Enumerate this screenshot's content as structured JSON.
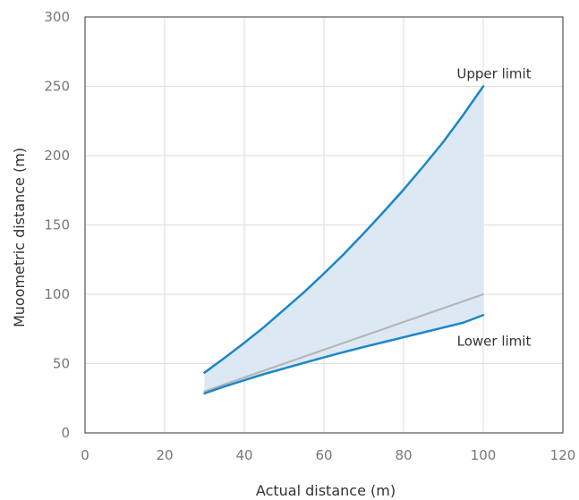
{
  "chart_data": {
    "type": "area",
    "title": "",
    "xlabel": "Actual distance (m)",
    "ylabel": "Muoometric distance (m)",
    "xlim": [
      0,
      120
    ],
    "ylim": [
      0,
      300
    ],
    "xticks": [
      0,
      20,
      40,
      60,
      80,
      100,
      120
    ],
    "yticks": [
      0,
      50,
      100,
      150,
      200,
      250,
      300
    ],
    "grid": true,
    "x": [
      30,
      35,
      40,
      45,
      50,
      55,
      60,
      65,
      70,
      75,
      80,
      85,
      90,
      95,
      100
    ],
    "series": [
      {
        "name": "Upper limit",
        "role": "upper",
        "color": "#1a87c9",
        "values": [
          43.5,
          54,
          65,
          76.5,
          89,
          101.5,
          115,
          129,
          144,
          159.5,
          175.5,
          192.5,
          210,
          229.5,
          250
        ]
      },
      {
        "name": "",
        "role": "actual",
        "color": "#b5b5b5",
        "values": [
          30,
          35,
          40,
          45,
          50,
          55,
          60,
          65,
          70,
          75,
          80,
          85,
          90,
          95,
          100
        ]
      },
      {
        "name": "Lower limit",
        "role": "lower",
        "color": "#1a87c9",
        "values": [
          28.5,
          33.5,
          38,
          42.5,
          46.5,
          50.5,
          54.5,
          58.3,
          62,
          65.5,
          69,
          72.5,
          76,
          79.5,
          85
        ]
      }
    ],
    "band_fill": "#dce8f4",
    "annotations": [
      {
        "text": "Upper limit",
        "x": 100,
        "y": 250
      },
      {
        "text": "Lower limit",
        "x": 100,
        "y": 65
      }
    ]
  }
}
